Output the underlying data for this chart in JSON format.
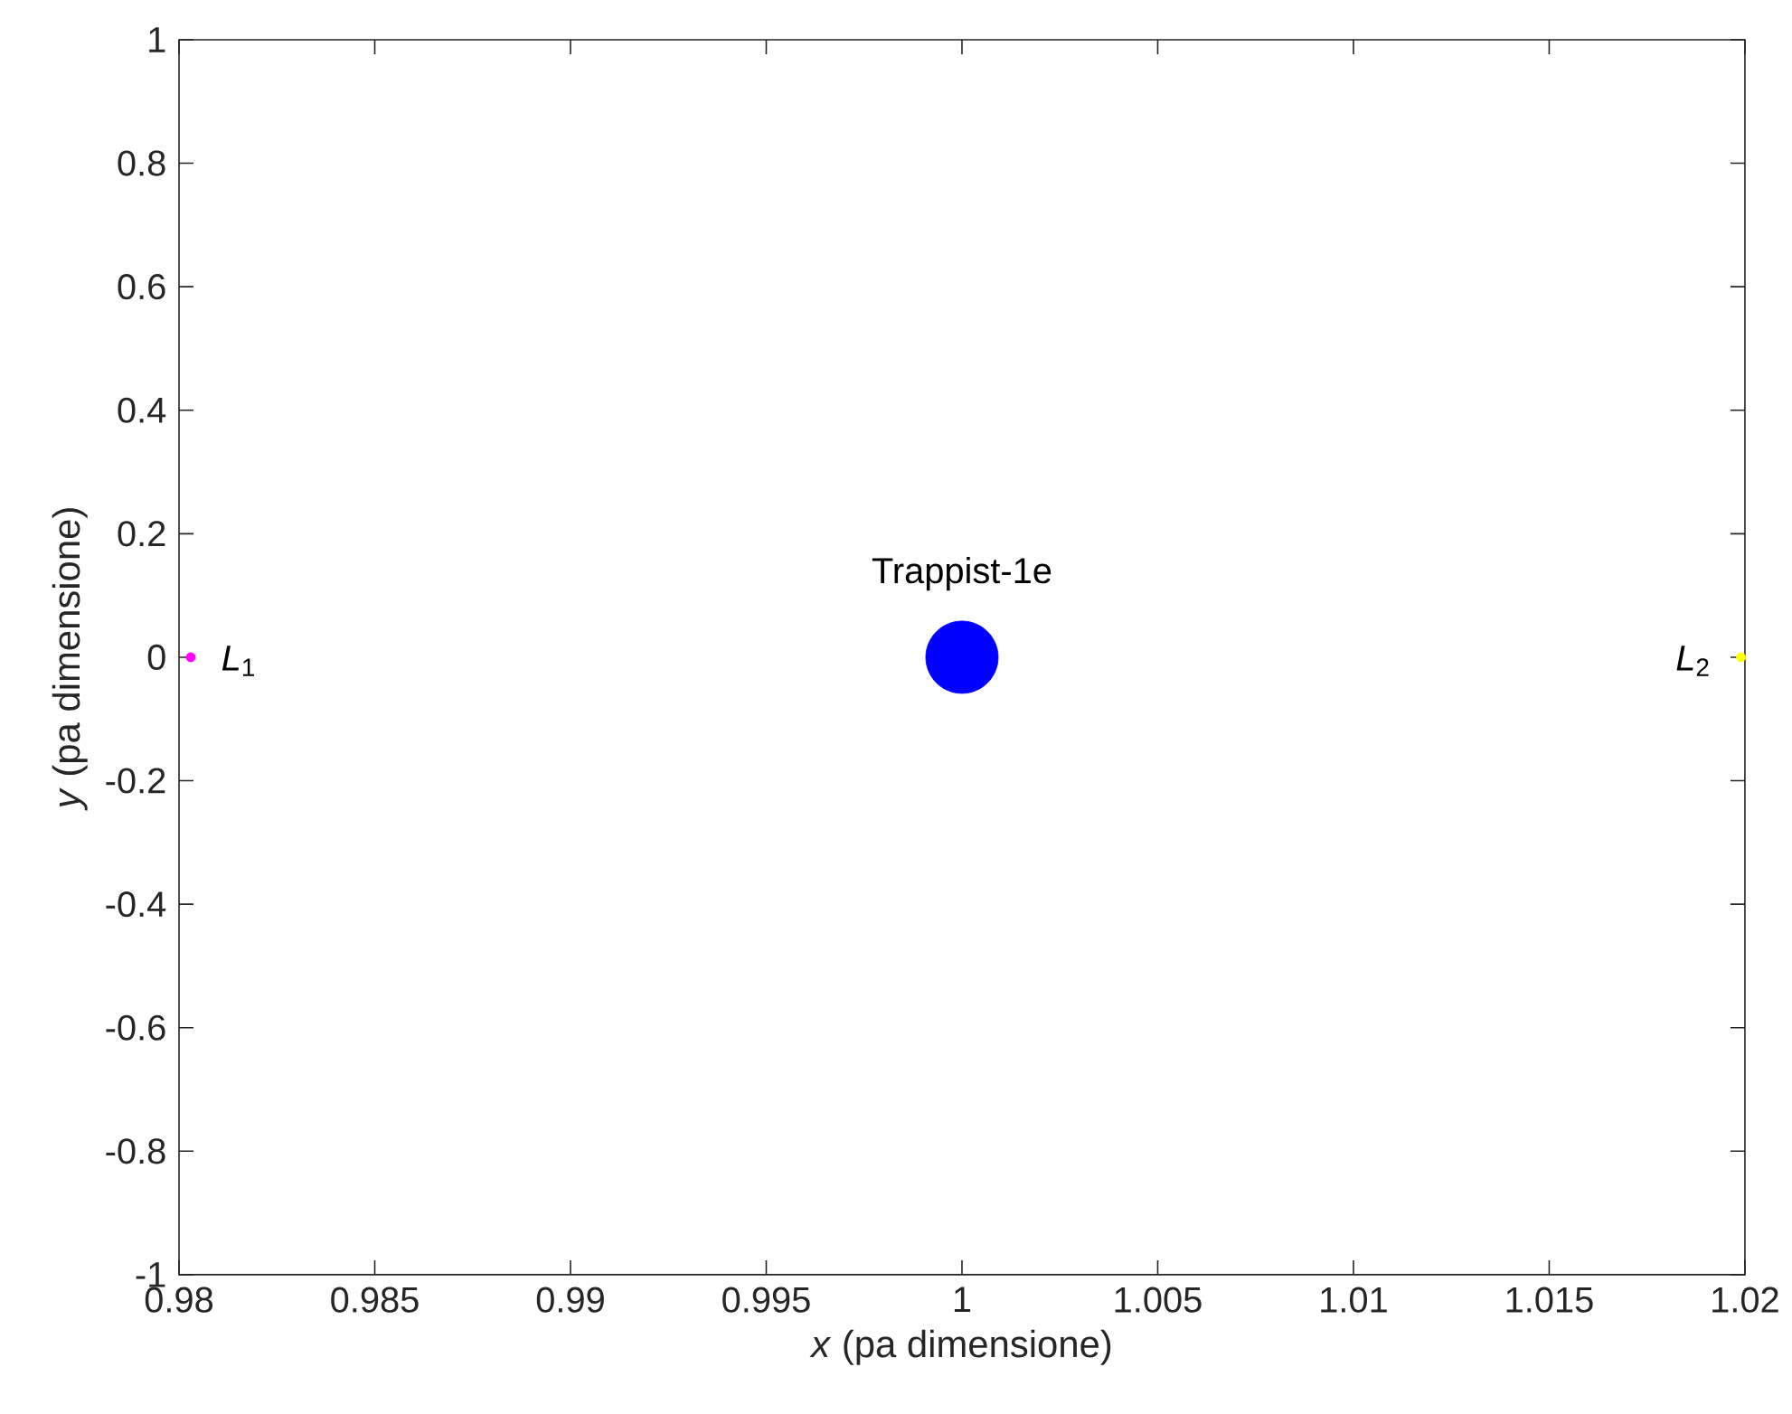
{
  "chart_data": {
    "type": "bubble",
    "xlabel": "*x* (pa dimensione)",
    "ylabel": "*y*  (pa dimensione)",
    "xlim": [
      0.98,
      1.02
    ],
    "ylim": [
      -1,
      1
    ],
    "xticks": [
      0.98,
      0.985,
      0.99,
      0.995,
      1,
      1.005,
      1.01,
      1.015,
      1.02
    ],
    "yticks": [
      -1,
      -0.8,
      -0.6,
      -0.4,
      -0.2,
      0,
      0.2,
      0.4,
      0.6,
      0.8,
      1
    ],
    "grid": false,
    "marker": "circle",
    "series": [
      {
        "color": "#ff00ff",
        "x": [
          0.9803
        ],
        "values": [
          0
        ],
        "sizes": [
          0.016
        ]
      },
      {
        "color": "#0000ff",
        "x": [
          1.0
        ],
        "values": [
          0
        ],
        "sizes": [
          1
        ]
      },
      {
        "color": "#ffff00",
        "x": [
          1.0199
        ],
        "values": [
          0
        ],
        "sizes": [
          0.016
        ]
      }
    ],
    "annotations": [
      {
        "text": "*L*$_{1}$",
        "x": 0.9803,
        "y": 0
      },
      {
        "text": "Trappist-1e",
        "x": 1.0,
        "y": 0
      },
      {
        "text": "*L*$_{2}$",
        "x": 1.0199,
        "y": 0
      }
    ]
  }
}
